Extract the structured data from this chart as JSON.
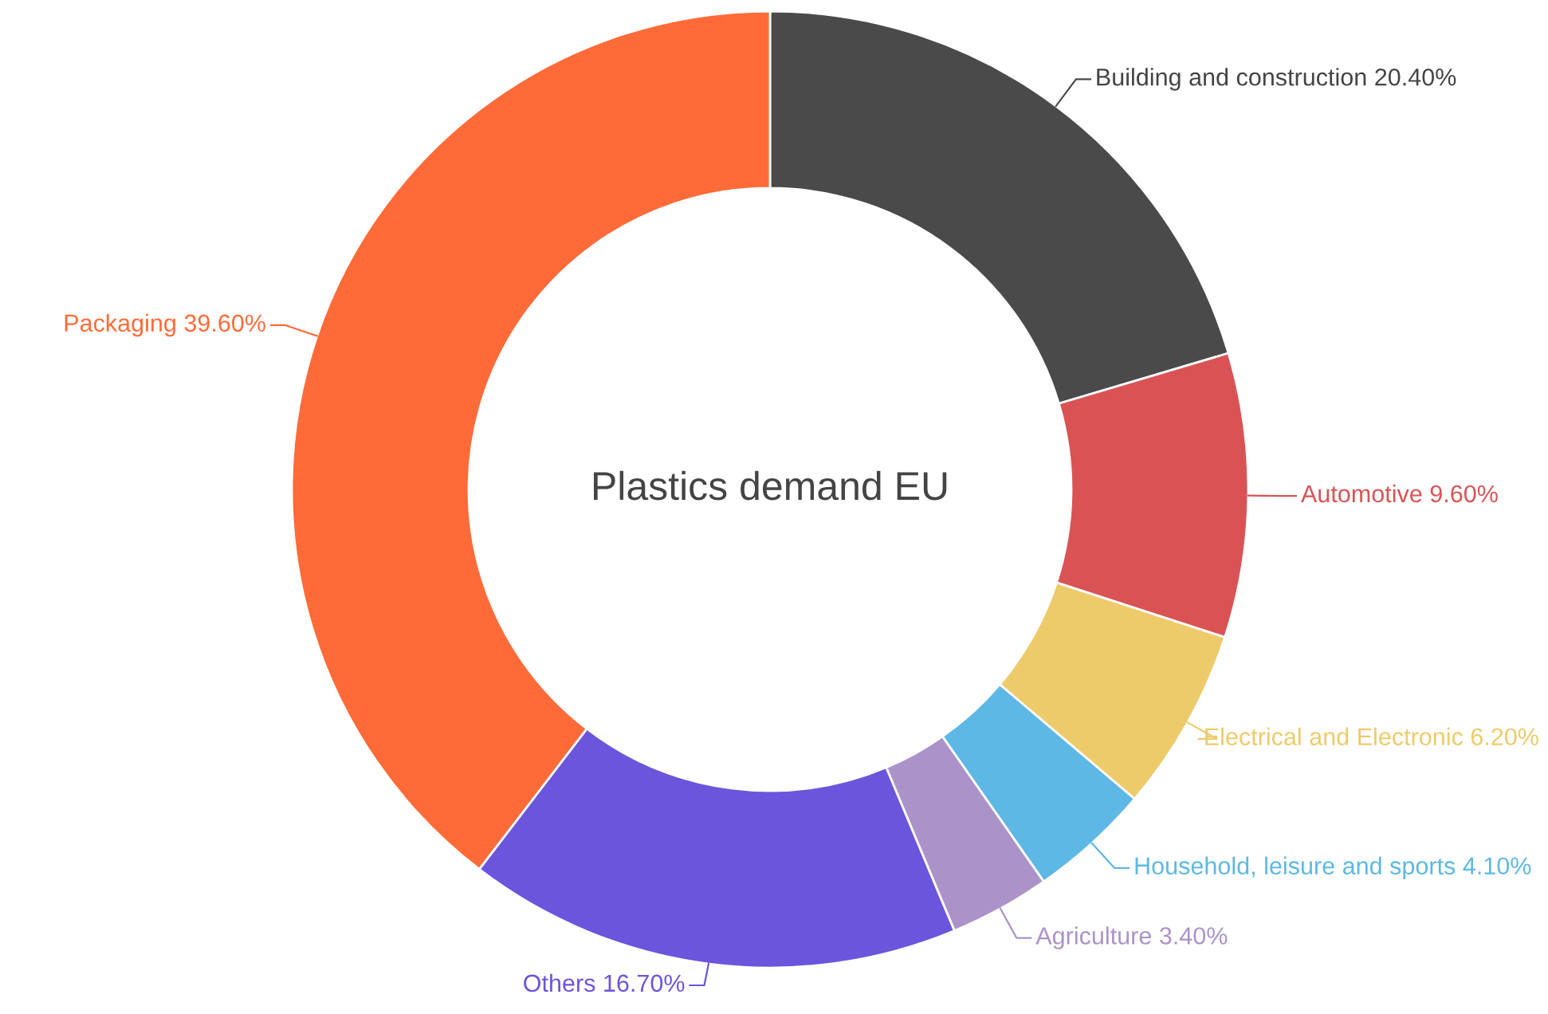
{
  "chart_data": {
    "type": "donut",
    "title": "Plastics demand EU",
    "categories": [
      "Building and construction",
      "Automotive",
      "Electrical and Electronic",
      "Household, leisure and sports",
      "Agriculture",
      "Others",
      "Packaging"
    ],
    "values": [
      20.4,
      9.6,
      6.2,
      4.1,
      3.4,
      16.7,
      39.6
    ],
    "value_labels": [
      "20.40%",
      "9.60%",
      "6.20%",
      "4.10%",
      "3.40%",
      "16.70%",
      "39.60%"
    ],
    "colors": [
      "#4a4a4a",
      "#d95355",
      "#eecb6a",
      "#5db8e6",
      "#ab93c9",
      "#6b55dc",
      "#ff6b38"
    ]
  }
}
